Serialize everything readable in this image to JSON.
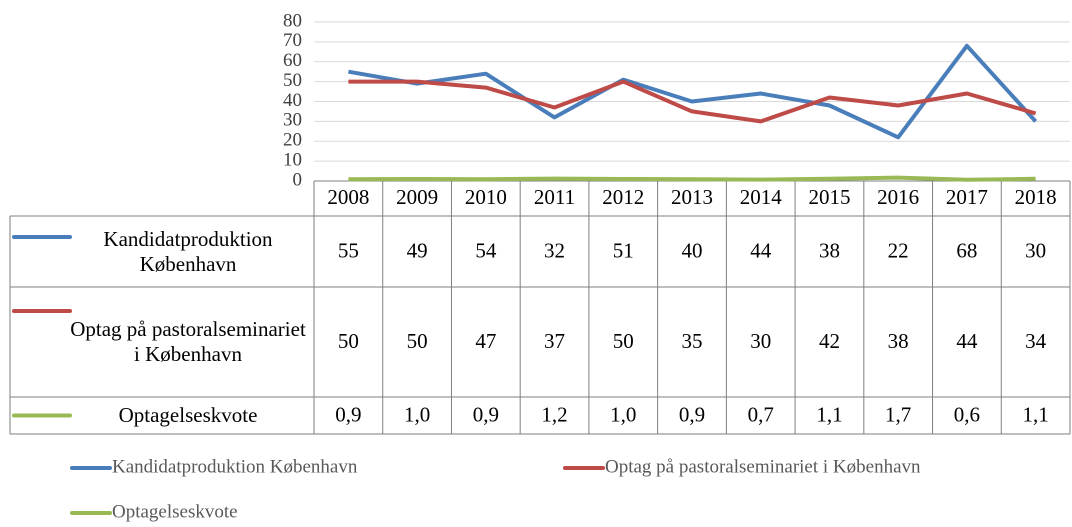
{
  "chart_data": {
    "type": "line",
    "categories": [
      "2008",
      "2009",
      "2010",
      "2011",
      "2012",
      "2013",
      "2014",
      "2015",
      "2016",
      "2017",
      "2018"
    ],
    "series": [
      {
        "name": "Kandidatproduktion København",
        "color": "#4a7ebb",
        "values": [
          55,
          49,
          54,
          32,
          51,
          40,
          44,
          38,
          22,
          68,
          30
        ]
      },
      {
        "name": "Optag på pastoralseminariet i København",
        "color": "#be4b48",
        "values": [
          50,
          50,
          47,
          37,
          50,
          35,
          30,
          42,
          38,
          44,
          34
        ]
      },
      {
        "name": "Optagelseskvote",
        "color": "#98b954",
        "values": [
          0.9,
          1.0,
          0.9,
          1.2,
          1.0,
          0.9,
          0.7,
          1.1,
          1.7,
          0.6,
          1.1
        ],
        "value_labels": [
          "0,9",
          "1,0",
          "0,9",
          "1,2",
          "1,0",
          "0,9",
          "0,7",
          "1,1",
          "1,7",
          "0,6",
          "1,1"
        ]
      }
    ],
    "ylim": [
      0,
      80
    ],
    "yticks": [
      0,
      10,
      20,
      30,
      40,
      50,
      60,
      70,
      80
    ],
    "grid": true,
    "legend": "bottom",
    "data_table": true
  }
}
